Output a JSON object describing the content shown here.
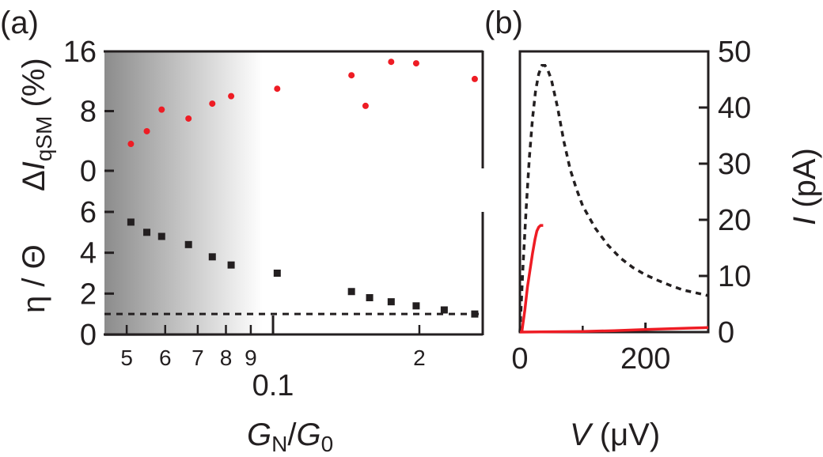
{
  "panels": {
    "a": "(a)",
    "b": "(b)"
  },
  "colors": {
    "red": "#ee1c24",
    "black": "#231f20",
    "gray": "#8c8c8c"
  },
  "chart_data": [
    {
      "type": "scatter",
      "panel": "a-top",
      "x_scale": "log",
      "xlim": [
        0.045,
        0.27
      ],
      "ylim": [
        0,
        16
      ],
      "yticks": [
        "0",
        "8",
        "16"
      ],
      "ylabel": {
        "prefix": "Δ",
        "var": "I",
        "sub": "qSM",
        "unit": " (%)"
      },
      "series": [
        {
          "color": "#ee1c24",
          "x": [
            0.051,
            0.055,
            0.059,
            0.067,
            0.075,
            0.082,
            0.102,
            0.145,
            0.155,
            0.175,
            0.197,
            0.26
          ],
          "y": [
            3.6,
            5.3,
            8.2,
            7.0,
            9.0,
            10.0,
            11.0,
            12.8,
            8.7,
            14.6,
            14.4,
            12.3
          ]
        }
      ]
    },
    {
      "type": "scatter",
      "panel": "a-bottom",
      "x_scale": "log",
      "xlim": [
        0.045,
        0.27
      ],
      "ylim": [
        0,
        6
      ],
      "yticks": [
        "0",
        "2",
        "4",
        "6"
      ],
      "ylabel": "η / Θ",
      "xlabel": {
        "var1": "G",
        "sub1": "N",
        "sep": "/",
        "var2": "G",
        "sub2": "0"
      },
      "xtick_labels": [
        {
          "x": 0.05,
          "text": "5"
        },
        {
          "x": 0.06,
          "text": "6"
        },
        {
          "x": 0.07,
          "text": "7"
        },
        {
          "x": 0.08,
          "text": "8"
        },
        {
          "x": 0.09,
          "text": "9"
        },
        {
          "x": 0.1,
          "text": "0.1"
        },
        {
          "x": 0.2,
          "text": "2"
        }
      ],
      "reference_line": {
        "y": 1.0,
        "style": "dashed"
      },
      "series": [
        {
          "color": "#231f20",
          "x": [
            0.051,
            0.055,
            0.059,
            0.067,
            0.075,
            0.082,
            0.102,
            0.145,
            0.158,
            0.175,
            0.197,
            0.225,
            0.26
          ],
          "y": [
            5.5,
            5.0,
            4.8,
            4.4,
            3.8,
            3.4,
            3.0,
            2.1,
            1.8,
            1.6,
            1.4,
            1.2,
            1.0
          ]
        }
      ]
    },
    {
      "type": "line",
      "panel": "b",
      "xlim": [
        0,
        300
      ],
      "ylim": [
        0,
        50
      ],
      "xticks": [
        "0",
        "200"
      ],
      "yticks": [
        "0",
        "10",
        "20",
        "30",
        "40",
        "50"
      ],
      "xlabel": {
        "var": "V",
        "unit": " (μV)"
      },
      "ylabel": {
        "var": "I",
        "unit": " (pA)"
      },
      "series": [
        {
          "style": "dashed",
          "color": "#231f20",
          "x": [
            0,
            5,
            10,
            15,
            20,
            25,
            30,
            35,
            40,
            45,
            50,
            60,
            70,
            80,
            90,
            100,
            120,
            140,
            160,
            180,
            200,
            220,
            240,
            260,
            280,
            300
          ],
          "y": [
            0,
            12,
            22,
            31,
            38,
            43,
            46,
            47.5,
            47.5,
            46.5,
            45,
            40,
            34,
            29,
            25.5,
            22.5,
            18.5,
            15.5,
            13.2,
            11.5,
            10.2,
            9.2,
            8.3,
            7.5,
            7.0,
            6.5
          ]
        },
        {
          "style": "solid",
          "color": "#ee1c24",
          "x": [
            3,
            8,
            12,
            16,
            20,
            24,
            27,
            30,
            33,
            35,
            37
          ],
          "y": [
            0,
            4,
            8,
            11,
            14,
            16.5,
            18,
            18.7,
            19,
            19,
            19
          ]
        },
        {
          "style": "solid",
          "color": "#ee1c24",
          "x": [
            0,
            50,
            100,
            150,
            200,
            240,
            270,
            300
          ],
          "y": [
            0,
            0.05,
            0.1,
            0.25,
            0.45,
            0.6,
            0.7,
            0.8
          ]
        }
      ]
    }
  ]
}
